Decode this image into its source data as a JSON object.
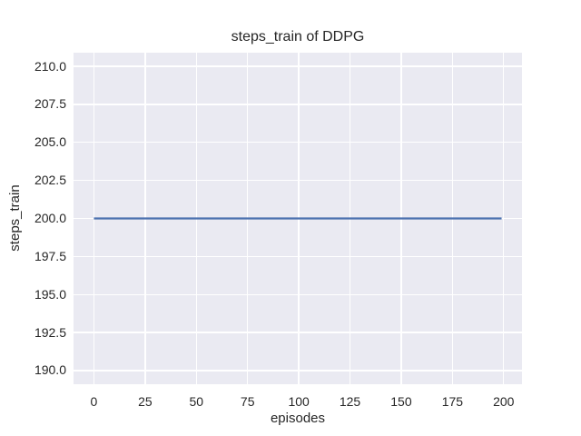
{
  "chart_data": {
    "type": "line",
    "title": "steps_train of DDPG",
    "xlabel": "episodes",
    "ylabel": "steps_train",
    "x_range": [
      -9.95,
      208.95
    ],
    "y_range": [
      189.1,
      210.9
    ],
    "grid": true,
    "legend": "none",
    "x_ticks": [
      {
        "value": 0,
        "label": "0"
      },
      {
        "value": 25,
        "label": "25"
      },
      {
        "value": 50,
        "label": "50"
      },
      {
        "value": 75,
        "label": "75"
      },
      {
        "value": 100,
        "label": "100"
      },
      {
        "value": 125,
        "label": "125"
      },
      {
        "value": 150,
        "label": "150"
      },
      {
        "value": 175,
        "label": "175"
      },
      {
        "value": 200,
        "label": "200"
      }
    ],
    "y_ticks": [
      {
        "value": 190.0,
        "label": "190.0"
      },
      {
        "value": 192.5,
        "label": "192.5"
      },
      {
        "value": 195.0,
        "label": "195.0"
      },
      {
        "value": 197.5,
        "label": "197.5"
      },
      {
        "value": 200.0,
        "label": "200.0"
      },
      {
        "value": 202.5,
        "label": "202.5"
      },
      {
        "value": 205.0,
        "label": "205.0"
      },
      {
        "value": 207.5,
        "label": "207.5"
      },
      {
        "value": 210.0,
        "label": "210.0"
      }
    ],
    "series": [
      {
        "name": "steps_train",
        "description": "constant value 200 across episodes 0 to 199",
        "x": [
          0,
          199
        ],
        "y": [
          200,
          200
        ],
        "color": "#4c72b0",
        "line_width": 2.2
      }
    ],
    "colors": {
      "figure_background": "#ffffff",
      "plot_background": "#eaeaf2",
      "grid": "#ffffff",
      "text": "#262626"
    }
  }
}
